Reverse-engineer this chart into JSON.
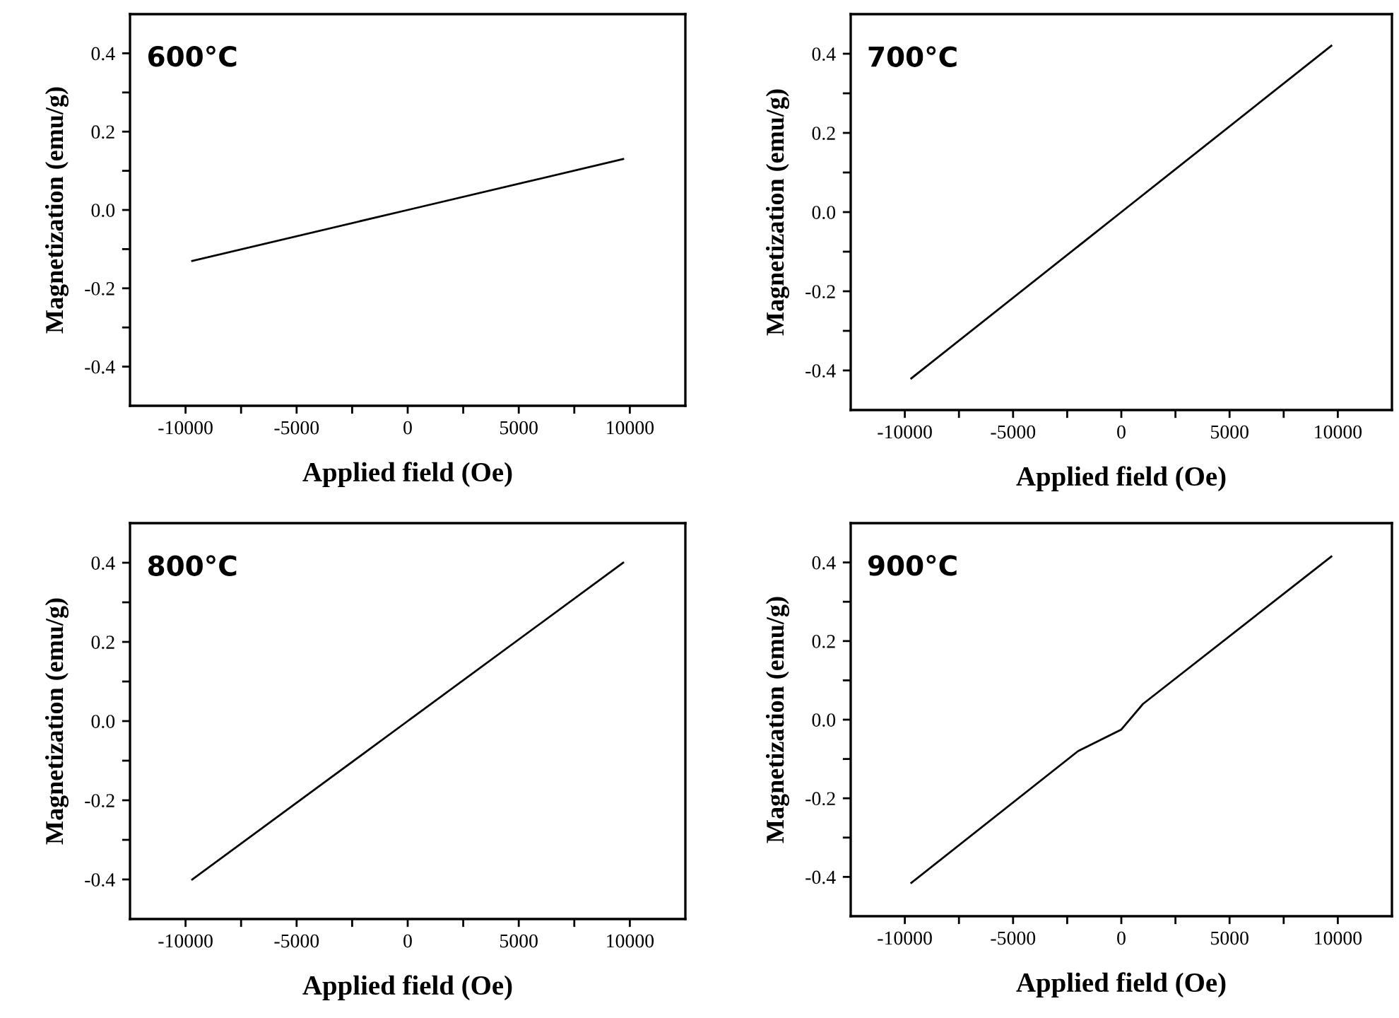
{
  "chart_data": [
    {
      "type": "line",
      "annotations": [
        "600°C"
      ],
      "xlabel": "Applied field (Oe)",
      "ylabel": "Magnetization (emu/g)",
      "xlim": [
        -12500,
        12500
      ],
      "ylim": [
        -0.5,
        0.5
      ],
      "xticks": [
        -10000,
        {
          "value": -7500,
          "label": null
        },
        -5000,
        {
          "value": -2500,
          "label": null
        },
        0,
        {
          "value": 2500,
          "label": null
        },
        5000,
        {
          "value": 7500,
          "label": null
        },
        10000
      ],
      "yticks": [
        -0.4,
        {
          "value": -0.3,
          "label": null
        },
        -0.2,
        {
          "value": -0.1,
          "label": null
        },
        {
          "value": 0,
          "label": "0.0"
        },
        {
          "value": 0.1,
          "label": null
        },
        0.2,
        {
          "value": 0.3,
          "label": null
        },
        0.4
      ],
      "x": [
        -9700,
        0,
        9700
      ],
      "series": [
        {
          "color": "#000000",
          "values": [
            -0.13,
            0.0,
            0.13
          ]
        }
      ]
    },
    {
      "type": "line",
      "annotations": [
        "700°C"
      ],
      "xlabel": "Applied field (Oe)",
      "ylabel": "Magnetization (emu/g)",
      "xlim": [
        -12500,
        12500
      ],
      "ylim": [
        -0.5,
        0.5
      ],
      "xticks": [
        -10000,
        {
          "value": -7500,
          "label": null
        },
        -5000,
        {
          "value": -2500,
          "label": null
        },
        0,
        {
          "value": 2500,
          "label": null
        },
        5000,
        {
          "value": 7500,
          "label": null
        },
        10000
      ],
      "yticks": [
        -0.4,
        {
          "value": -0.3,
          "label": null
        },
        -0.2,
        {
          "value": -0.1,
          "label": null
        },
        {
          "value": 0,
          "label": "0.0"
        },
        {
          "value": 0.1,
          "label": null
        },
        0.2,
        {
          "value": 0.3,
          "label": null
        },
        0.4
      ],
      "x": [
        -9700,
        0,
        9700
      ],
      "series": [
        {
          "color": "#000000",
          "values": [
            -0.42,
            0.0,
            0.42
          ]
        }
      ]
    },
    {
      "type": "line",
      "annotations": [
        "800°C"
      ],
      "xlabel": "Applied field (Oe)",
      "ylabel": "Magnetization (emu/g)",
      "xlim": [
        -12500,
        12500
      ],
      "ylim": [
        -0.5,
        0.5
      ],
      "xticks": [
        -10000,
        {
          "value": -7500,
          "label": null
        },
        -5000,
        {
          "value": -2500,
          "label": null
        },
        0,
        {
          "value": 2500,
          "label": null
        },
        5000,
        {
          "value": 7500,
          "label": null
        },
        10000
      ],
      "yticks": [
        -0.4,
        {
          "value": -0.3,
          "label": null
        },
        -0.2,
        {
          "value": -0.1,
          "label": null
        },
        {
          "value": 0,
          "label": "0.0"
        },
        {
          "value": 0.1,
          "label": null
        },
        0.2,
        {
          "value": 0.3,
          "label": null
        },
        0.4
      ],
      "x": [
        -9700,
        0,
        9700
      ],
      "series": [
        {
          "color": "#000000",
          "values": [
            -0.4,
            0.0,
            0.4
          ]
        }
      ]
    },
    {
      "type": "line",
      "annotations": [
        "900°C"
      ],
      "xlabel": "Applied field (Oe)",
      "ylabel": "Magnetization (emu/g)",
      "xlim": [
        -12500,
        12500
      ],
      "ylim": [
        -0.5,
        0.5
      ],
      "xticks": [
        -10000,
        {
          "value": -7500,
          "label": null
        },
        -5000,
        {
          "value": -2500,
          "label": null
        },
        0,
        {
          "value": 2500,
          "label": null
        },
        5000,
        {
          "value": 7500,
          "label": null
        },
        10000
      ],
      "yticks": [
        -0.4,
        {
          "value": -0.3,
          "label": null
        },
        -0.2,
        {
          "value": -0.1,
          "label": null
        },
        {
          "value": 0,
          "label": "0.0"
        },
        {
          "value": 0.1,
          "label": null
        },
        0.2,
        {
          "value": 0.3,
          "label": null
        },
        0.4
      ],
      "x": [
        -9700,
        -2000,
        0,
        1000,
        9700
      ],
      "series": [
        {
          "color": "#000000",
          "values": [
            -0.415,
            -0.08,
            -0.025,
            0.04,
            0.415
          ]
        }
      ]
    }
  ]
}
